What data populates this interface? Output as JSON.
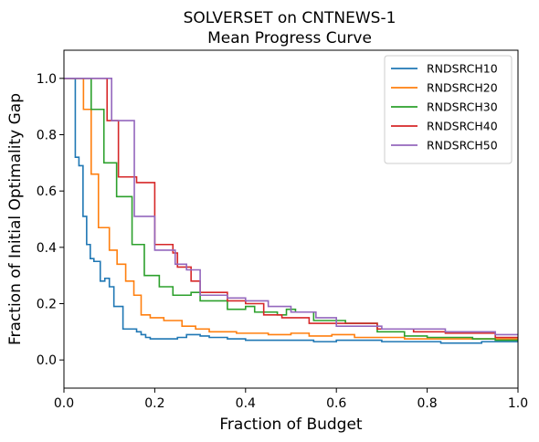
{
  "chart_data": {
    "type": "line",
    "step": "post",
    "title": [
      "SOLVERSET on CNTNEWS-1",
      "Mean Progress Curve"
    ],
    "xlabel": "Fraction of Budget",
    "ylabel": "Fraction of Initial Optimality Gap",
    "xlim": [
      0,
      1
    ],
    "ylim": [
      -0.1,
      1.1
    ],
    "xticks": [
      0,
      0.2,
      0.4,
      0.6,
      0.8,
      1
    ],
    "xtick_labels": [
      "0.0",
      "0.2",
      "0.4",
      "0.6",
      "0.8",
      "1.0"
    ],
    "yticks": [
      0,
      0.2,
      0.4,
      0.6,
      0.8,
      1
    ],
    "ytick_labels": [
      "0.0",
      "0.2",
      "0.4",
      "0.6",
      "0.8",
      "1.0"
    ],
    "grid": false,
    "legend_position": "top-right",
    "series": [
      {
        "name": "RNDSRCH10",
        "color": "#1f77b4",
        "points": [
          [
            0,
            1
          ],
          [
            0.025,
            0.72
          ],
          [
            0.033,
            0.69
          ],
          [
            0.042,
            0.51
          ],
          [
            0.05,
            0.41
          ],
          [
            0.058,
            0.36
          ],
          [
            0.066,
            0.35
          ],
          [
            0.08,
            0.28
          ],
          [
            0.09,
            0.29
          ],
          [
            0.1,
            0.26
          ],
          [
            0.11,
            0.19
          ],
          [
            0.13,
            0.11
          ],
          [
            0.16,
            0.1
          ],
          [
            0.17,
            0.09
          ],
          [
            0.18,
            0.08
          ],
          [
            0.19,
            0.075
          ],
          [
            0.25,
            0.08
          ],
          [
            0.27,
            0.09
          ],
          [
            0.3,
            0.085
          ],
          [
            0.32,
            0.08
          ],
          [
            0.36,
            0.075
          ],
          [
            0.4,
            0.07
          ],
          [
            0.55,
            0.065
          ],
          [
            0.6,
            0.07
          ],
          [
            0.7,
            0.065
          ],
          [
            0.8,
            0.065
          ],
          [
            0.83,
            0.06
          ],
          [
            0.92,
            0.065
          ],
          [
            1,
            0.065
          ]
        ]
      },
      {
        "name": "RNDSRCH20",
        "color": "#ff7f0e",
        "points": [
          [
            0,
            1
          ],
          [
            0.043,
            0.89
          ],
          [
            0.06,
            0.66
          ],
          [
            0.076,
            0.47
          ],
          [
            0.1,
            0.39
          ],
          [
            0.117,
            0.34
          ],
          [
            0.136,
            0.28
          ],
          [
            0.154,
            0.23
          ],
          [
            0.17,
            0.16
          ],
          [
            0.19,
            0.15
          ],
          [
            0.22,
            0.14
          ],
          [
            0.26,
            0.12
          ],
          [
            0.29,
            0.11
          ],
          [
            0.32,
            0.1
          ],
          [
            0.38,
            0.095
          ],
          [
            0.45,
            0.09
          ],
          [
            0.5,
            0.095
          ],
          [
            0.54,
            0.085
          ],
          [
            0.59,
            0.09
          ],
          [
            0.64,
            0.08
          ],
          [
            0.75,
            0.075
          ],
          [
            0.95,
            0.075
          ],
          [
            1,
            0.075
          ]
        ]
      },
      {
        "name": "RNDSRCH30",
        "color": "#2ca02c",
        "points": [
          [
            0,
            1
          ],
          [
            0.06,
            0.89
          ],
          [
            0.088,
            0.7
          ],
          [
            0.116,
            0.58
          ],
          [
            0.15,
            0.41
          ],
          [
            0.177,
            0.3
          ],
          [
            0.21,
            0.26
          ],
          [
            0.24,
            0.23
          ],
          [
            0.28,
            0.24
          ],
          [
            0.3,
            0.21
          ],
          [
            0.36,
            0.18
          ],
          [
            0.4,
            0.19
          ],
          [
            0.42,
            0.17
          ],
          [
            0.47,
            0.16
          ],
          [
            0.49,
            0.18
          ],
          [
            0.51,
            0.17
          ],
          [
            0.55,
            0.14
          ],
          [
            0.62,
            0.13
          ],
          [
            0.69,
            0.1
          ],
          [
            0.75,
            0.085
          ],
          [
            0.8,
            0.08
          ],
          [
            0.9,
            0.075
          ],
          [
            0.95,
            0.07
          ],
          [
            1,
            0.07
          ]
        ]
      },
      {
        "name": "RNDSRCH40",
        "color": "#d62728",
        "points": [
          [
            0,
            1
          ],
          [
            0.095,
            0.85
          ],
          [
            0.12,
            0.65
          ],
          [
            0.16,
            0.63
          ],
          [
            0.2,
            0.41
          ],
          [
            0.24,
            0.38
          ],
          [
            0.25,
            0.33
          ],
          [
            0.28,
            0.28
          ],
          [
            0.3,
            0.24
          ],
          [
            0.36,
            0.21
          ],
          [
            0.4,
            0.2
          ],
          [
            0.44,
            0.16
          ],
          [
            0.48,
            0.15
          ],
          [
            0.54,
            0.13
          ],
          [
            0.57,
            0.13
          ],
          [
            0.69,
            0.11
          ],
          [
            0.77,
            0.1
          ],
          [
            0.8,
            0.1
          ],
          [
            0.84,
            0.095
          ],
          [
            0.95,
            0.08
          ],
          [
            1,
            0.08
          ]
        ]
      },
      {
        "name": "RNDSRCH50",
        "color": "#9467bd",
        "points": [
          [
            0,
            1
          ],
          [
            0.105,
            0.85
          ],
          [
            0.155,
            0.51
          ],
          [
            0.2,
            0.39
          ],
          [
            0.245,
            0.34
          ],
          [
            0.27,
            0.32
          ],
          [
            0.3,
            0.23
          ],
          [
            0.36,
            0.22
          ],
          [
            0.4,
            0.21
          ],
          [
            0.45,
            0.19
          ],
          [
            0.5,
            0.17
          ],
          [
            0.555,
            0.15
          ],
          [
            0.6,
            0.12
          ],
          [
            0.66,
            0.12
          ],
          [
            0.7,
            0.11
          ],
          [
            0.8,
            0.11
          ],
          [
            0.84,
            0.1
          ],
          [
            0.9,
            0.1
          ],
          [
            0.95,
            0.09
          ],
          [
            1,
            0.09
          ]
        ]
      }
    ]
  }
}
